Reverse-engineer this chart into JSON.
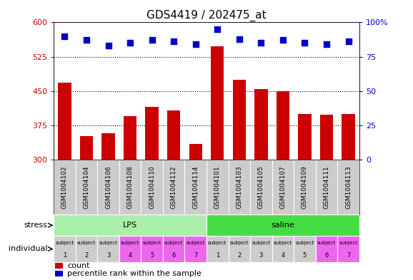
{
  "title": "GDS4419 / 202475_at",
  "samples": [
    "GSM1004102",
    "GSM1004104",
    "GSM1004106",
    "GSM1004108",
    "GSM1004110",
    "GSM1004112",
    "GSM1004114",
    "GSM1004101",
    "GSM1004103",
    "GSM1004105",
    "GSM1004107",
    "GSM1004109",
    "GSM1004111",
    "GSM1004113"
  ],
  "counts": [
    468,
    352,
    358,
    395,
    415,
    408,
    335,
    548,
    475,
    455,
    450,
    400,
    398,
    400
  ],
  "percentiles": [
    90,
    87,
    83,
    85,
    87,
    86,
    84,
    95,
    88,
    85,
    87,
    85,
    84,
    86
  ],
  "ylim_left": [
    300,
    600
  ],
  "ylim_right": [
    0,
    100
  ],
  "yticks_left": [
    300,
    375,
    450,
    525,
    600
  ],
  "yticks_right": [
    0,
    25,
    50,
    75,
    100
  ],
  "bar_color": "#cc0000",
  "dot_color": "#0000cc",
  "stress_lps_color": "#aaf0aa",
  "stress_saline_color": "#44dd44",
  "individual_lps_colors": [
    "#cccccc",
    "#cccccc",
    "#cccccc",
    "#ee66ee",
    "#ee66ee",
    "#ee66ee",
    "#ee66ee"
  ],
  "individual_sal_colors": [
    "#cccccc",
    "#cccccc",
    "#cccccc",
    "#cccccc",
    "#cccccc",
    "#ee66ee",
    "#ee66ee"
  ],
  "gsm_bg_color": "#cccccc",
  "lps_count": 7,
  "saline_count": 7,
  "bar_width": 0.6,
  "dot_size": 40,
  "title_fontsize": 11,
  "tick_fontsize": 8,
  "label_fontsize": 8,
  "annotation_fontsize": 8,
  "grid_ticks": [
    375,
    450,
    525
  ]
}
